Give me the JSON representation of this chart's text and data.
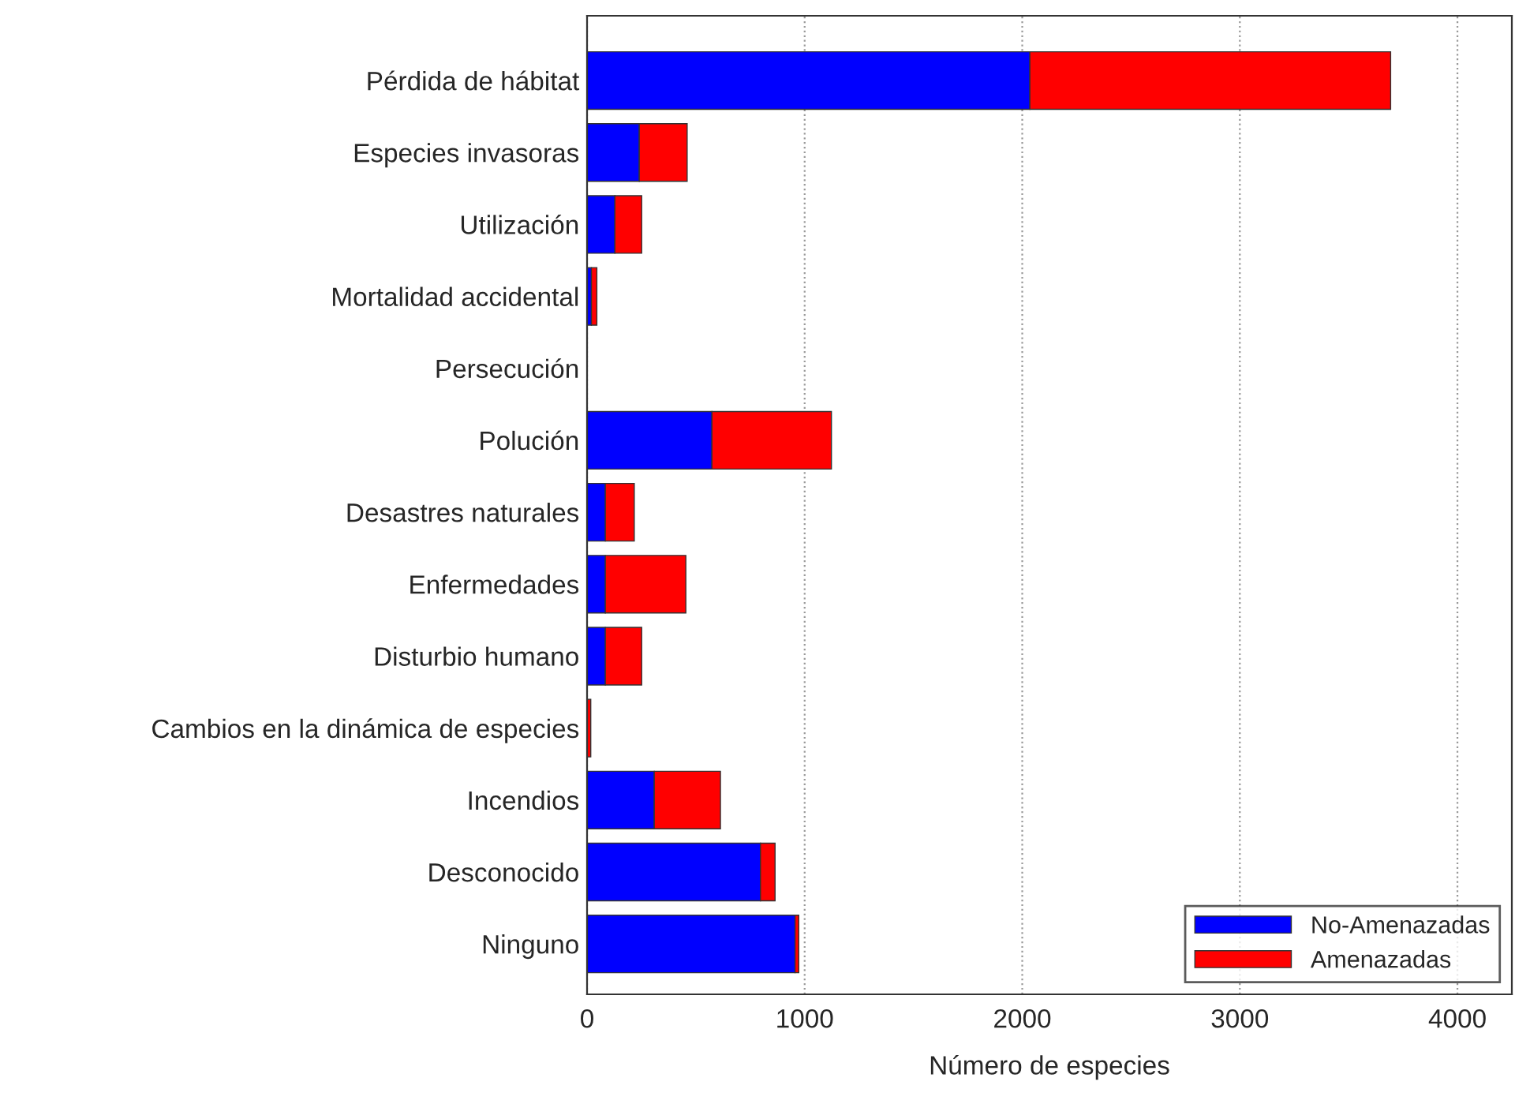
{
  "chart_data": {
    "type": "bar",
    "orientation": "horizontal",
    "stacked": true,
    "categories": [
      "Pérdida de hábitat",
      "Especies invasoras",
      "Utilización",
      "Mortalidad accidental",
      "Persecución",
      "Polución",
      "Desastres naturales",
      "Enfermedades",
      "Disturbio humano",
      "Cambios en la dinámica de especies",
      "Incendios",
      "Desconocido",
      "Ninguno"
    ],
    "series": [
      {
        "name": "No-Amenazadas",
        "color": "#0000ff",
        "values": [
          2035,
          240,
          128,
          20,
          null,
          574,
          84,
          84,
          84,
          null,
          309,
          797,
          956
        ]
      },
      {
        "name": "Amenazadas",
        "color": "#ff0000",
        "values": [
          1658,
          220,
          123,
          25,
          null,
          549,
          133,
          370,
          167,
          17,
          304,
          67,
          17
        ]
      }
    ],
    "xlabel": "Número de especies",
    "xlim": [
      0,
      4250
    ],
    "xticks": [
      0,
      1000,
      2000,
      3000,
      4000
    ],
    "grid": "x",
    "legend": "bottom right"
  }
}
